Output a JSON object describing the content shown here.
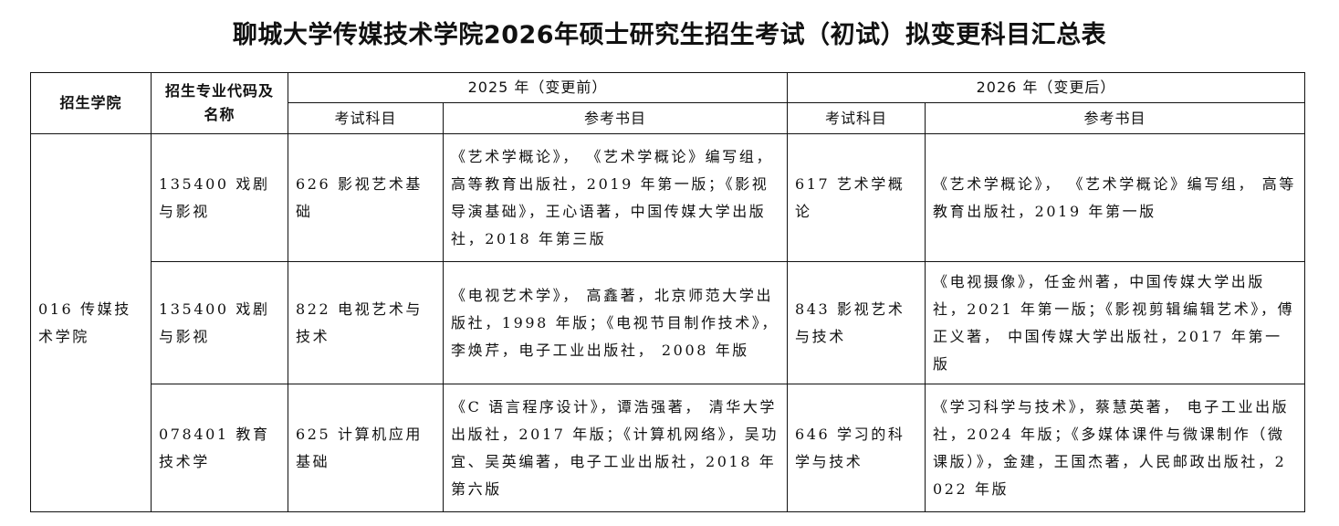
{
  "title": "聊城大学传媒技术学院2026年硕士研究生招生考试（初试）拟变更科目汇总表",
  "headers": {
    "college": "招生学院",
    "major": "招生专业代码及名称",
    "before": "2025 年（变更前）",
    "after": "2026 年（变更后）",
    "exam": "考试科目",
    "books": "参考书目"
  },
  "college": "016 传媒技术学院",
  "rows": [
    {
      "major": "135400 戏剧与影视",
      "before_exam": "626 影视艺术基础",
      "before_books": "《艺术学概论》， 《艺术学概论》编写组，高等教育出版社，2019 年第一版；《影视导演基础》，王心语著，中国传媒大学出版社，2018 年第三版",
      "after_exam": "617 艺术学概论",
      "after_books": "《艺术学概论》， 《艺术学概论》编写组， 高等教育出版社，2019 年第一版"
    },
    {
      "major": "135400 戏剧与影视",
      "before_exam": "822 电视艺术与技术",
      "before_books": "《电视艺术学》， 高鑫著，北京师范大学出版社，1998 年版；《电视节目制作技术》，李焕芹，电子工业出版社， 2008 年版",
      "after_exam": "843 影视艺术与技术",
      "after_books": "《电视摄像》，任金州著，中国传媒大学出版社，2021 年第一版；《影视剪辑编辑艺术》，傅正义著， 中国传媒大学出版社，2017 年第一版"
    },
    {
      "major": "078401 教育技术学",
      "before_exam": "625 计算机应用基础",
      "before_books": "《C 语言程序设计》，谭浩强著， 清华大学出版社，2017 年版；《计算机网络》，吴功宜、吴英编著，电子工业出版社，2018 年第六版",
      "after_exam": "646 学习的科学与技术",
      "after_books": "《学习科学与技术》，蔡慧英著， 电子工业出版社，2024 年版；《多媒体课件与微课制作（微课版）》，金建，王国杰著，人民邮政出版社，2022 年版"
    }
  ]
}
